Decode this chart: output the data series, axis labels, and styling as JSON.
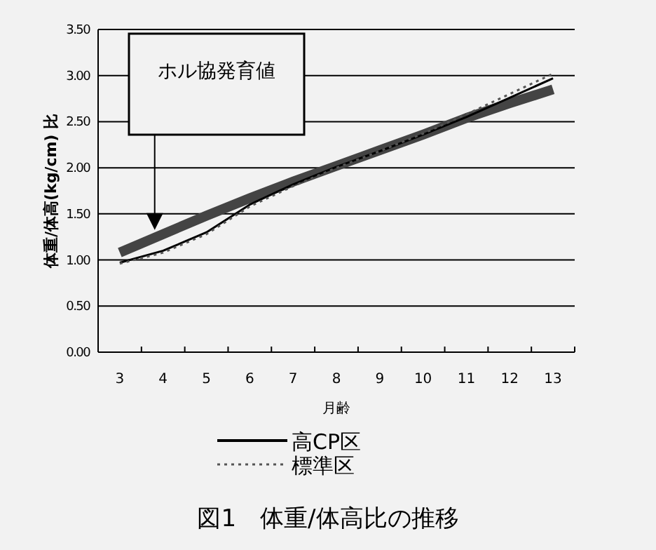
{
  "chart_data": {
    "type": "line",
    "title": "図1　体重/体高比の推移",
    "xlabel": "月齢",
    "ylabel": "体重/体高(kg/cm) 比",
    "categories": [
      "3",
      "4",
      "5",
      "6",
      "7",
      "8",
      "9",
      "10",
      "11",
      "12",
      "13"
    ],
    "series": [
      {
        "color": "#444444",
        "values": [
          1.08,
          1.28,
          1.48,
          1.67,
          1.85,
          2.02,
          2.19,
          2.36,
          2.54,
          2.7,
          2.85
        ]
      },
      {
        "name": "高CP区",
        "color": "#000000",
        "values": [
          0.97,
          1.1,
          1.3,
          1.6,
          1.82,
          2.01,
          2.18,
          2.36,
          2.55,
          2.76,
          2.97
        ]
      },
      {
        "name": "標準区",
        "color": "#555555",
        "line_style": "dotted",
        "values": [
          0.96,
          1.08,
          1.28,
          1.58,
          1.8,
          2.0,
          2.18,
          2.37,
          2.58,
          2.8,
          3.02
        ]
      }
    ],
    "ylim": [
      0,
      3.5
    ],
    "yticks": [
      {
        "value": 0,
        "label": "0.00"
      },
      {
        "value": 0.5,
        "label": "0.50"
      },
      {
        "value": 1,
        "label": "1.00"
      },
      {
        "value": 1.5,
        "label": "1.50"
      },
      {
        "value": 2,
        "label": "2.00"
      },
      {
        "value": 2.5,
        "label": "2.50"
      },
      {
        "value": 3,
        "label": "3.00"
      },
      {
        "value": 3.5,
        "label": "3.50"
      }
    ],
    "annotations": [
      "ホル協発育値"
    ],
    "grid": "y",
    "legend": "bottom"
  }
}
